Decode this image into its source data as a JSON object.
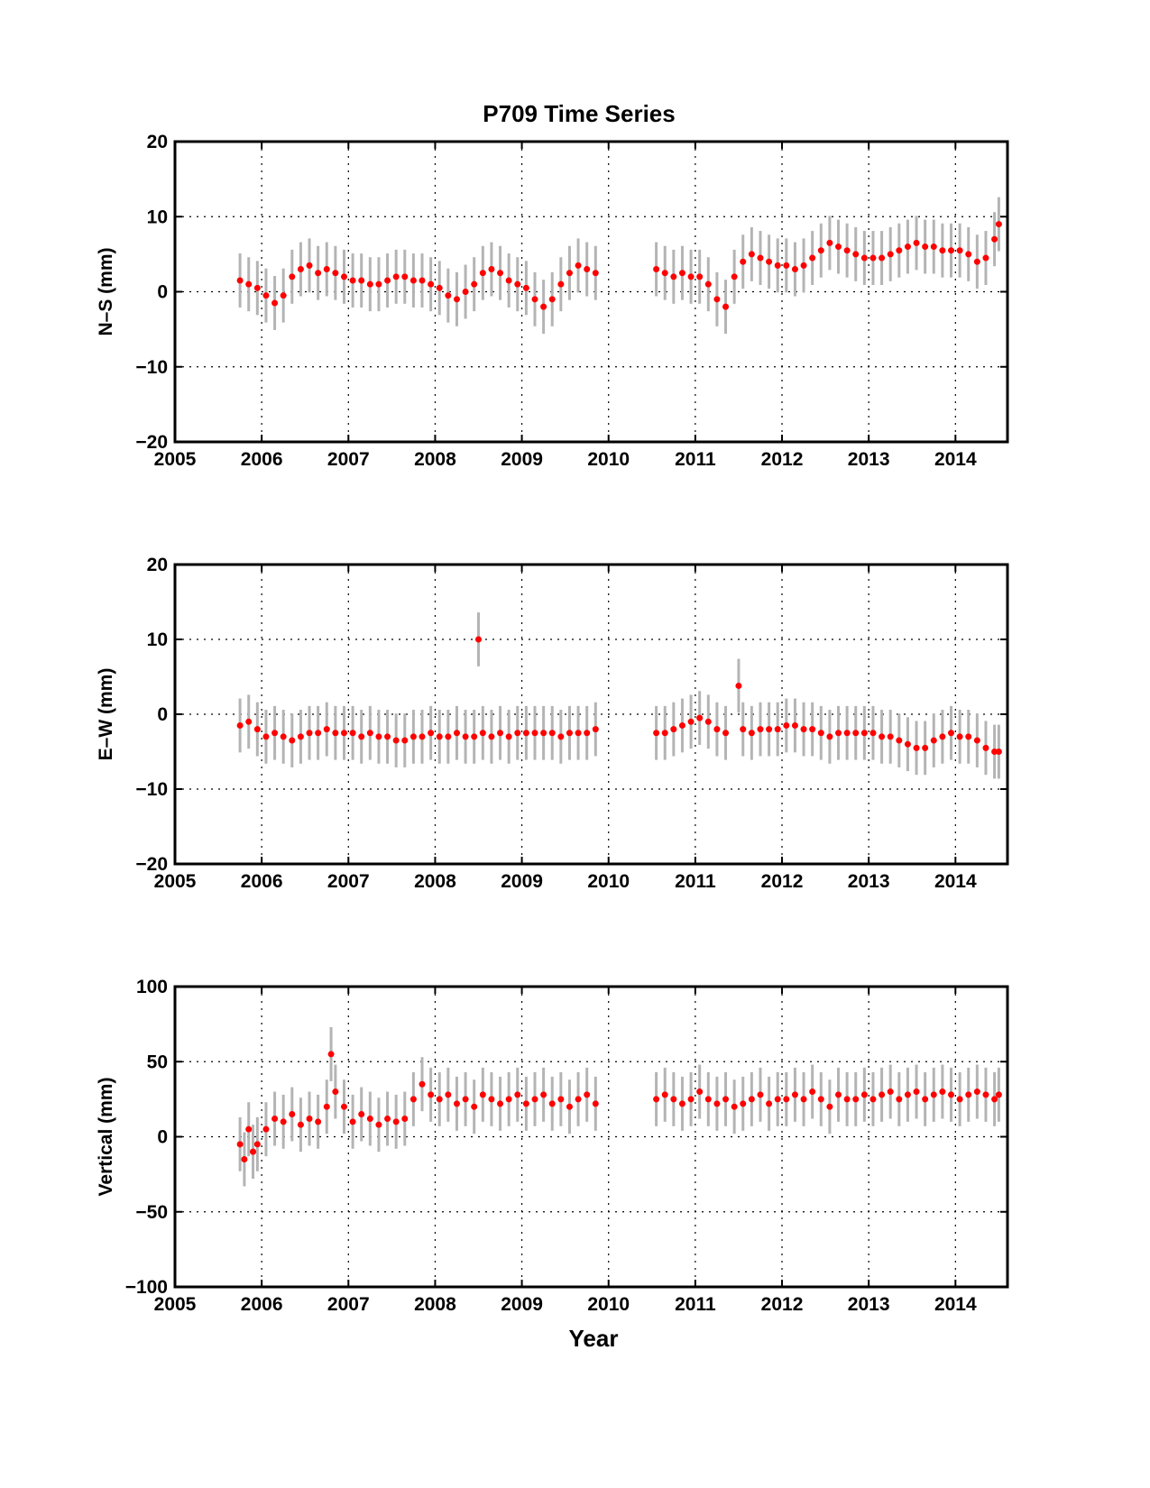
{
  "figure": {
    "title": "P709 Time Series",
    "xlabel": "Year"
  },
  "colors": {
    "points": "#ff0000",
    "error_bars": "#b4b4b4",
    "grid": "#000000",
    "axes": "#000000"
  },
  "chart_data": [
    {
      "type": "scatter",
      "ylabel": "N–S (mm)",
      "xlim": [
        2005,
        2014.6
      ],
      "ylim": [
        -20,
        20
      ],
      "xticks": [
        2005,
        2006,
        2007,
        2008,
        2009,
        2010,
        2011,
        2012,
        2013,
        2014
      ],
      "yticks": [
        20,
        10,
        0,
        -10,
        -20
      ],
      "ytick_labels": [
        "20",
        "10",
        "0",
        "−10",
        "−20"
      ],
      "grid": true,
      "error_bars": true,
      "series": [
        {
          "x": [
            2005.75,
            2005.85,
            2005.95,
            2006.05,
            2006.15,
            2006.25,
            2006.35,
            2006.45,
            2006.55,
            2006.65,
            2006.75,
            2006.85,
            2006.95,
            2007.05,
            2007.15,
            2007.25,
            2007.35,
            2007.45,
            2007.55,
            2007.65,
            2007.75,
            2007.85,
            2007.95,
            2008.05,
            2008.15,
            2008.25,
            2008.35,
            2008.45,
            2008.55,
            2008.65,
            2008.75,
            2008.85,
            2008.95,
            2009.05,
            2009.15,
            2009.25,
            2009.35,
            2009.45,
            2009.55,
            2009.65,
            2009.75,
            2009.85,
            2010.55,
            2010.65,
            2010.75,
            2010.85,
            2010.95,
            2011.05,
            2011.15,
            2011.25,
            2011.35,
            2011.45,
            2011.55,
            2011.65,
            2011.75,
            2011.85,
            2011.95,
            2012.05,
            2012.15,
            2012.25,
            2012.35,
            2012.45,
            2012.55,
            2012.65,
            2012.75,
            2012.85,
            2012.95,
            2013.05,
            2013.15,
            2013.25,
            2013.35,
            2013.45,
            2013.55,
            2013.65,
            2013.75,
            2013.85,
            2013.95,
            2014.05,
            2014.15,
            2014.25,
            2014.35,
            2014.45,
            2014.5
          ],
          "y": [
            1.5,
            1,
            0.5,
            -0.5,
            -1.5,
            -0.5,
            2,
            3,
            3.5,
            2.5,
            3,
            2.5,
            2,
            1.5,
            1.5,
            1,
            1,
            1.5,
            2,
            2,
            1.5,
            1.5,
            1,
            0.5,
            -0.5,
            -1,
            0,
            1,
            2.5,
            3,
            2.5,
            1.5,
            1,
            0.5,
            -1,
            -2,
            -1,
            1,
            2.5,
            3.5,
            3,
            2.5,
            3,
            2.5,
            2,
            2.5,
            2,
            2,
            1,
            -1,
            -2,
            2,
            4,
            5,
            4.5,
            4,
            3.5,
            3.5,
            3,
            3.5,
            4.5,
            5.5,
            6.5,
            6,
            5.5,
            5,
            4.5,
            4.5,
            4.5,
            5,
            5.5,
            6,
            6.5,
            6,
            6,
            5.5,
            5.5,
            5.5,
            5,
            4,
            4.5,
            7,
            9
          ]
        }
      ]
    },
    {
      "type": "scatter",
      "ylabel": "E–W (mm)",
      "xlim": [
        2005,
        2014.6
      ],
      "ylim": [
        -20,
        20
      ],
      "xticks": [
        2005,
        2006,
        2007,
        2008,
        2009,
        2010,
        2011,
        2012,
        2013,
        2014
      ],
      "yticks": [
        20,
        10,
        0,
        -10,
        -20
      ],
      "ytick_labels": [
        "20",
        "10",
        "0",
        "−10",
        "−20"
      ],
      "grid": true,
      "error_bars": true,
      "series": [
        {
          "x": [
            2005.75,
            2005.85,
            2005.95,
            2006.05,
            2006.15,
            2006.25,
            2006.35,
            2006.45,
            2006.55,
            2006.65,
            2006.75,
            2006.85,
            2006.95,
            2007.05,
            2007.15,
            2007.25,
            2007.35,
            2007.45,
            2007.55,
            2007.65,
            2007.75,
            2007.85,
            2007.95,
            2008.05,
            2008.15,
            2008.25,
            2008.35,
            2008.45,
            2008.5,
            2008.55,
            2008.65,
            2008.75,
            2008.85,
            2008.95,
            2009.05,
            2009.15,
            2009.25,
            2009.35,
            2009.45,
            2009.55,
            2009.65,
            2009.75,
            2009.85,
            2010.55,
            2010.65,
            2010.75,
            2010.85,
            2010.95,
            2011.05,
            2011.15,
            2011.25,
            2011.35,
            2011.5,
            2011.55,
            2011.65,
            2011.75,
            2011.85,
            2011.95,
            2012.05,
            2012.15,
            2012.25,
            2012.35,
            2012.45,
            2012.55,
            2012.65,
            2012.75,
            2012.85,
            2012.95,
            2013.05,
            2013.15,
            2013.25,
            2013.35,
            2013.45,
            2013.55,
            2013.65,
            2013.75,
            2013.85,
            2013.95,
            2014.05,
            2014.15,
            2014.25,
            2014.35,
            2014.45,
            2014.5
          ],
          "y": [
            -1.5,
            -1,
            -2,
            -3,
            -2.5,
            -3,
            -3.5,
            -3,
            -2.5,
            -2.5,
            -2,
            -2.5,
            -2.5,
            -2.5,
            -3,
            -2.5,
            -3,
            -3,
            -3.5,
            -3.5,
            -3,
            -3,
            -2.5,
            -3,
            -3,
            -2.5,
            -3,
            -3,
            10,
            -2.5,
            -3,
            -2.5,
            -3,
            -2.5,
            -2.5,
            -2.5,
            -2.5,
            -2.5,
            -3,
            -2.5,
            -2.5,
            -2.5,
            -2,
            -2.5,
            -2.5,
            -2,
            -1.5,
            -1,
            -0.5,
            -1,
            -2,
            -2.5,
            3.8,
            -2,
            -2.5,
            -2,
            -2,
            -2,
            -1.5,
            -1.5,
            -2,
            -2,
            -2.5,
            -3,
            -2.5,
            -2.5,
            -2.5,
            -2.5,
            -2.5,
            -3,
            -3,
            -3.5,
            -4,
            -4.5,
            -4.5,
            -3.5,
            -3,
            -2.5,
            -3,
            -3,
            -3.5,
            -4.5,
            -5,
            -5
          ]
        }
      ]
    },
    {
      "type": "scatter",
      "ylabel": "Vertical (mm)",
      "xlim": [
        2005,
        2014.6
      ],
      "ylim": [
        -100,
        100
      ],
      "xticks": [
        2005,
        2006,
        2007,
        2008,
        2009,
        2010,
        2011,
        2012,
        2013,
        2014
      ],
      "yticks": [
        100,
        50,
        0,
        -50,
        -100
      ],
      "ytick_labels": [
        "100",
        "50",
        "0",
        "−50",
        "−100"
      ],
      "grid": true,
      "error_bars": true,
      "series": [
        {
          "x": [
            2005.75,
            2005.8,
            2005.85,
            2005.9,
            2005.95,
            2006.05,
            2006.15,
            2006.25,
            2006.35,
            2006.45,
            2006.55,
            2006.65,
            2006.75,
            2006.8,
            2006.85,
            2006.95,
            2007.05,
            2007.15,
            2007.25,
            2007.35,
            2007.45,
            2007.55,
            2007.65,
            2007.75,
            2007.85,
            2007.95,
            2008.05,
            2008.15,
            2008.25,
            2008.35,
            2008.45,
            2008.55,
            2008.65,
            2008.75,
            2008.85,
            2008.95,
            2009.05,
            2009.15,
            2009.25,
            2009.35,
            2009.45,
            2009.55,
            2009.65,
            2009.75,
            2009.85,
            2010.55,
            2010.65,
            2010.75,
            2010.85,
            2010.95,
            2011.05,
            2011.15,
            2011.25,
            2011.35,
            2011.45,
            2011.55,
            2011.65,
            2011.75,
            2011.85,
            2011.95,
            2012.05,
            2012.15,
            2012.25,
            2012.35,
            2012.45,
            2012.55,
            2012.65,
            2012.75,
            2012.85,
            2012.95,
            2013.05,
            2013.15,
            2013.25,
            2013.35,
            2013.45,
            2013.55,
            2013.65,
            2013.75,
            2013.85,
            2013.95,
            2014.05,
            2014.15,
            2014.25,
            2014.35,
            2014.45,
            2014.5
          ],
          "y": [
            -5,
            -15,
            5,
            -10,
            -5,
            5,
            12,
            10,
            15,
            8,
            12,
            10,
            20,
            55,
            30,
            20,
            10,
            15,
            12,
            8,
            12,
            10,
            12,
            25,
            35,
            28,
            25,
            28,
            22,
            25,
            20,
            28,
            25,
            22,
            25,
            28,
            22,
            25,
            28,
            22,
            25,
            20,
            25,
            28,
            22,
            25,
            28,
            25,
            22,
            25,
            30,
            25,
            22,
            25,
            20,
            22,
            25,
            28,
            22,
            25,
            25,
            28,
            25,
            30,
            25,
            20,
            28,
            25,
            25,
            28,
            25,
            28,
            30,
            25,
            28,
            30,
            25,
            28,
            30,
            28,
            25,
            28,
            30,
            28,
            25,
            28
          ]
        }
      ]
    }
  ]
}
